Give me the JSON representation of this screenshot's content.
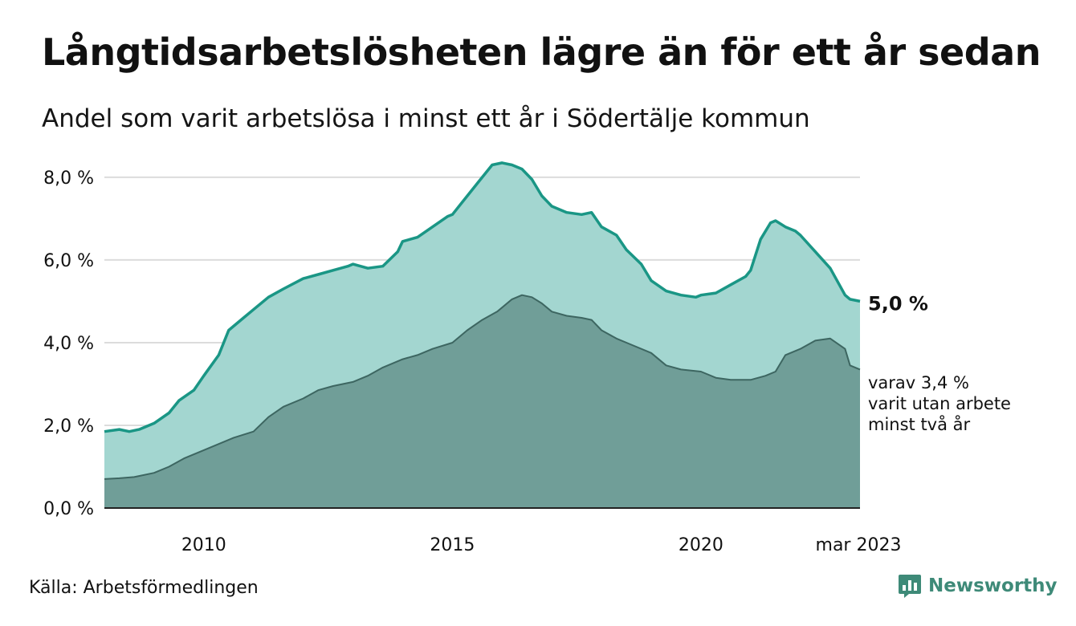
{
  "title": "Långtidsarbetslösheten lägre än för ett år sedan",
  "subtitle": "Andel som varit arbetslösa i minst ett år i Södertälje kommun",
  "source": "Källa: Arbetsförmedlingen",
  "brand": {
    "name": "Newsworthy",
    "icon": "newsworthy-logo-icon"
  },
  "colors": {
    "series1_line": "#1a9685",
    "series1_fill": "#a3d6d0",
    "series2_line": "#3d6661",
    "series2_fill": "#709e98",
    "gridline": "#dcdcdc",
    "brand": "#3e8a78"
  },
  "chart_data": {
    "type": "area",
    "x_unit": "year (decimal)",
    "xlim": [
      2008.0,
      2023.2
    ],
    "ylim": [
      0,
      8.6
    ],
    "yticks": [
      0,
      2,
      4,
      6,
      8
    ],
    "ytick_labels": [
      "0,0 %",
      "2,0 %",
      "4,0 %",
      "6,0 %",
      "8,0 %"
    ],
    "xticks": [
      2010,
      2015,
      2020,
      2023.2
    ],
    "xtick_labels": [
      "2010",
      "2015",
      "2020",
      "mar 2023"
    ],
    "grid": true,
    "series": [
      {
        "end_label": "5,0 %",
        "x": [
          2008.0,
          2008.3,
          2008.5,
          2008.7,
          2009.0,
          2009.3,
          2009.5,
          2009.8,
          2010.0,
          2010.3,
          2010.5,
          2010.8,
          2011.0,
          2011.3,
          2011.6,
          2012.0,
          2012.3,
          2012.6,
          2012.9,
          2013.0,
          2013.3,
          2013.6,
          2013.9,
          2014.0,
          2014.3,
          2014.6,
          2014.9,
          2015.0,
          2015.3,
          2015.5,
          2015.8,
          2016.0,
          2016.2,
          2016.4,
          2016.6,
          2016.8,
          2017.0,
          2017.3,
          2017.6,
          2017.8,
          2018.0,
          2018.3,
          2018.5,
          2018.8,
          2019.0,
          2019.3,
          2019.6,
          2019.9,
          2020.0,
          2020.3,
          2020.6,
          2020.9,
          2021.0,
          2021.2,
          2021.4,
          2021.5,
          2021.7,
          2021.9,
          2022.0,
          2022.3,
          2022.6,
          2022.9,
          2023.0,
          2023.2
        ],
        "y": [
          1.85,
          1.9,
          1.85,
          1.9,
          2.05,
          2.3,
          2.6,
          2.85,
          3.2,
          3.7,
          4.3,
          4.6,
          4.8,
          5.1,
          5.3,
          5.55,
          5.65,
          5.75,
          5.85,
          5.9,
          5.8,
          5.85,
          6.2,
          6.45,
          6.55,
          6.8,
          7.05,
          7.1,
          7.55,
          7.85,
          8.3,
          8.35,
          8.3,
          8.2,
          7.95,
          7.55,
          7.3,
          7.15,
          7.1,
          7.15,
          6.8,
          6.6,
          6.25,
          5.9,
          5.5,
          5.25,
          5.15,
          5.1,
          5.15,
          5.2,
          5.4,
          5.6,
          5.75,
          6.5,
          6.9,
          6.95,
          6.8,
          6.7,
          6.6,
          6.2,
          5.8,
          5.15,
          5.05,
          5.0
        ]
      },
      {
        "end_label_lines": [
          "varav 3,4 %",
          "varit utan arbete",
          "minst två år"
        ],
        "x": [
          2008.0,
          2008.3,
          2008.6,
          2009.0,
          2009.3,
          2009.6,
          2010.0,
          2010.3,
          2010.6,
          2011.0,
          2011.3,
          2011.6,
          2012.0,
          2012.3,
          2012.6,
          2013.0,
          2013.3,
          2013.6,
          2014.0,
          2014.3,
          2014.6,
          2015.0,
          2015.3,
          2015.6,
          2015.9,
          2016.2,
          2016.4,
          2016.6,
          2016.8,
          2017.0,
          2017.3,
          2017.6,
          2017.8,
          2018.0,
          2018.3,
          2018.6,
          2019.0,
          2019.3,
          2019.6,
          2020.0,
          2020.3,
          2020.6,
          2021.0,
          2021.3,
          2021.5,
          2021.7,
          2022.0,
          2022.3,
          2022.6,
          2022.9,
          2023.0,
          2023.2
        ],
        "y": [
          0.7,
          0.72,
          0.75,
          0.85,
          1.0,
          1.2,
          1.4,
          1.55,
          1.7,
          1.85,
          2.2,
          2.45,
          2.65,
          2.85,
          2.95,
          3.05,
          3.2,
          3.4,
          3.6,
          3.7,
          3.85,
          4.0,
          4.3,
          4.55,
          4.75,
          5.05,
          5.15,
          5.1,
          4.95,
          4.75,
          4.65,
          4.6,
          4.55,
          4.3,
          4.1,
          3.95,
          3.75,
          3.45,
          3.35,
          3.3,
          3.15,
          3.1,
          3.1,
          3.2,
          3.3,
          3.7,
          3.85,
          4.05,
          4.1,
          3.85,
          3.45,
          3.35
        ]
      }
    ]
  }
}
